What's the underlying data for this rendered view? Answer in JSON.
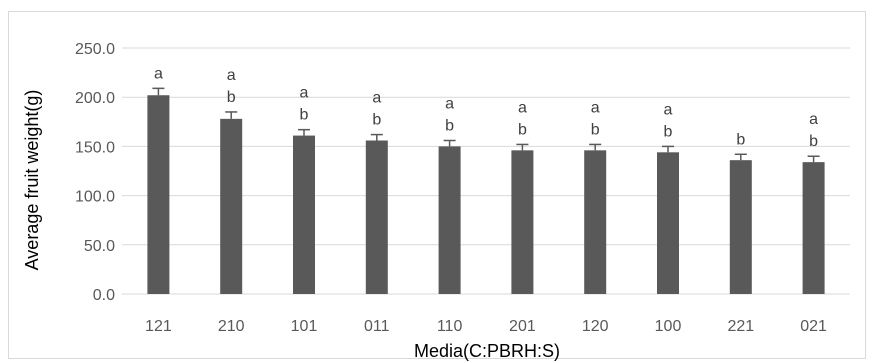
{
  "chart_data": {
    "type": "bar",
    "categories": [
      "121",
      "210",
      "101",
      "011",
      "110",
      "201",
      "120",
      "100",
      "221",
      "021"
    ],
    "values": [
      202,
      178,
      161,
      156,
      150,
      146,
      146,
      144,
      136,
      134
    ],
    "error": [
      7,
      7,
      6,
      6,
      6,
      6,
      6,
      6,
      6,
      6
    ],
    "significance": [
      [
        "a"
      ],
      [
        "a",
        "b"
      ],
      [
        "a",
        "b"
      ],
      [
        "a",
        "b"
      ],
      [
        "a",
        "b"
      ],
      [
        "a",
        "b"
      ],
      [
        "a",
        "b"
      ],
      [
        "a",
        "b"
      ],
      [
        "b"
      ],
      [
        "a",
        "b"
      ]
    ],
    "xlabel": "Media(C:PBRH:S)",
    "ylabel": "Average fruit weight(g)",
    "ylim": [
      0,
      250
    ],
    "yticks": [
      "0.0",
      "50.0",
      "100.0",
      "150.0",
      "200.0",
      "250.0"
    ],
    "grid": true,
    "bar_color": "#595959",
    "grid_color": "#d9d9d9"
  }
}
